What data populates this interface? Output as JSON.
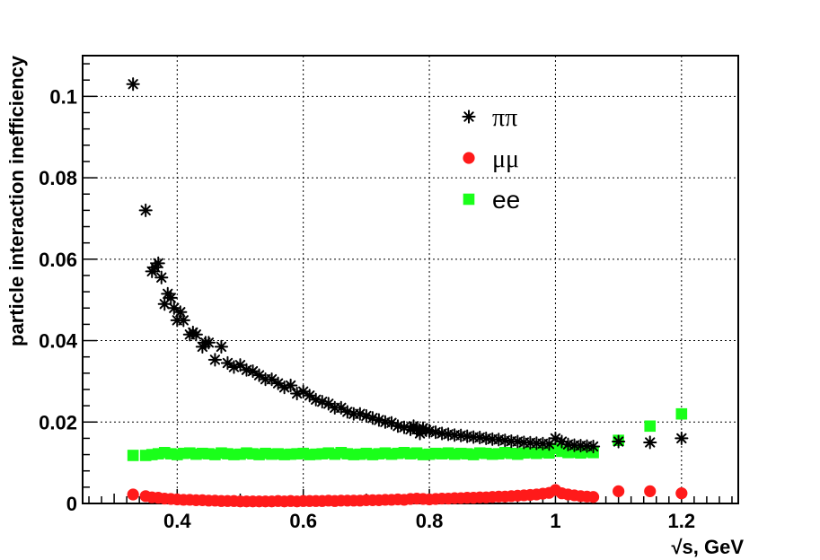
{
  "chart_data": {
    "type": "scatter",
    "title": "",
    "xlabel": "√s, GeV",
    "ylabel": "particle interaction inefficiency",
    "xlim": [
      0.25,
      1.29
    ],
    "ylim": [
      0,
      0.11
    ],
    "x_ticks": [
      0.4,
      0.6,
      0.8,
      1.0,
      1.2
    ],
    "x_tick_labels": [
      "0.4",
      "0.6",
      "0.8",
      "1",
      "1.2"
    ],
    "y_ticks": [
      0,
      0.02,
      0.04,
      0.06,
      0.08,
      0.1
    ],
    "y_tick_labels": [
      "0",
      "0.02",
      "0.04",
      "0.06",
      "0.08",
      "0.1"
    ],
    "grid": true,
    "legend_position": "top-center",
    "series": [
      {
        "name": "ππ",
        "marker": "star",
        "color": "#000000",
        "x": [
          0.33,
          0.35,
          0.36,
          0.365,
          0.37,
          0.375,
          0.38,
          0.385,
          0.39,
          0.395,
          0.4,
          0.405,
          0.41,
          0.42,
          0.425,
          0.43,
          0.44,
          0.445,
          0.45,
          0.46,
          0.47,
          0.48,
          0.49,
          0.5,
          0.51,
          0.52,
          0.53,
          0.54,
          0.55,
          0.56,
          0.57,
          0.58,
          0.59,
          0.6,
          0.61,
          0.62,
          0.63,
          0.64,
          0.65,
          0.66,
          0.67,
          0.68,
          0.69,
          0.7,
          0.71,
          0.72,
          0.73,
          0.74,
          0.75,
          0.76,
          0.77,
          0.775,
          0.78,
          0.785,
          0.79,
          0.795,
          0.8,
          0.81,
          0.82,
          0.83,
          0.84,
          0.85,
          0.86,
          0.87,
          0.88,
          0.89,
          0.9,
          0.91,
          0.92,
          0.93,
          0.94,
          0.95,
          0.96,
          0.97,
          0.98,
          0.99,
          1.0,
          1.01,
          1.02,
          1.03,
          1.04,
          1.05,
          1.06,
          1.1,
          1.15,
          1.2
        ],
        "y": [
          0.103,
          0.072,
          0.057,
          0.058,
          0.059,
          0.0555,
          0.049,
          0.0515,
          0.0505,
          0.048,
          0.045,
          0.047,
          0.045,
          0.0415,
          0.042,
          0.0415,
          0.0385,
          0.0395,
          0.0395,
          0.0353,
          0.0385,
          0.0345,
          0.0335,
          0.034,
          0.0328,
          0.0325,
          0.0315,
          0.0305,
          0.0305,
          0.0295,
          0.0285,
          0.029,
          0.027,
          0.0275,
          0.0265,
          0.0255,
          0.025,
          0.0245,
          0.0235,
          0.0235,
          0.0225,
          0.022,
          0.022,
          0.0215,
          0.021,
          0.0205,
          0.02,
          0.0198,
          0.019,
          0.0187,
          0.0182,
          0.019,
          0.0182,
          0.0172,
          0.0185,
          0.018,
          0.0178,
          0.0175,
          0.0172,
          0.017,
          0.0168,
          0.0167,
          0.0165,
          0.0163,
          0.0162,
          0.016,
          0.0158,
          0.0157,
          0.0155,
          0.0153,
          0.0152,
          0.015,
          0.0149,
          0.0148,
          0.0147,
          0.0146,
          0.016,
          0.0152,
          0.0145,
          0.0143,
          0.0142,
          0.0141,
          0.014,
          0.0152,
          0.015,
          0.016
        ]
      },
      {
        "name": "μμ",
        "marker": "circle",
        "color": "#ff1a1a",
        "x": [
          0.33,
          0.35,
          0.36,
          0.37,
          0.38,
          0.39,
          0.4,
          0.41,
          0.42,
          0.43,
          0.44,
          0.45,
          0.46,
          0.47,
          0.48,
          0.49,
          0.5,
          0.51,
          0.52,
          0.53,
          0.54,
          0.55,
          0.56,
          0.57,
          0.58,
          0.59,
          0.6,
          0.61,
          0.62,
          0.63,
          0.64,
          0.65,
          0.66,
          0.67,
          0.68,
          0.69,
          0.7,
          0.71,
          0.72,
          0.73,
          0.74,
          0.75,
          0.76,
          0.77,
          0.78,
          0.79,
          0.8,
          0.81,
          0.82,
          0.83,
          0.84,
          0.85,
          0.86,
          0.87,
          0.88,
          0.89,
          0.9,
          0.91,
          0.92,
          0.93,
          0.94,
          0.95,
          0.96,
          0.97,
          0.98,
          0.99,
          1.0,
          1.01,
          1.02,
          1.03,
          1.04,
          1.05,
          1.06,
          1.1,
          1.15,
          1.2
        ],
        "y": [
          0.0022,
          0.0018,
          0.0015,
          0.0014,
          0.0012,
          0.0011,
          0.001,
          0.0009,
          0.0009,
          0.0008,
          0.0008,
          0.0007,
          0.0007,
          0.0006,
          0.0006,
          0.0006,
          0.0005,
          0.0005,
          0.0005,
          0.0005,
          0.0005,
          0.0005,
          0.0006,
          0.0005,
          0.0006,
          0.0005,
          0.0006,
          0.0006,
          0.0006,
          0.0006,
          0.0007,
          0.0006,
          0.0007,
          0.0007,
          0.0007,
          0.0007,
          0.0008,
          0.0008,
          0.0008,
          0.0009,
          0.0009,
          0.001,
          0.0009,
          0.0011,
          0.0012,
          0.0011,
          0.001,
          0.0011,
          0.0012,
          0.0012,
          0.0013,
          0.0013,
          0.0014,
          0.0014,
          0.0015,
          0.0015,
          0.0016,
          0.0017,
          0.0017,
          0.0018,
          0.0019,
          0.002,
          0.0021,
          0.0022,
          0.0024,
          0.0026,
          0.0033,
          0.0025,
          0.0022,
          0.002,
          0.0018,
          0.0017,
          0.0016,
          0.003,
          0.003,
          0.0025
        ]
      },
      {
        "name": "ee",
        "marker": "square",
        "color": "#1aff1a",
        "x": [
          0.33,
          0.35,
          0.36,
          0.37,
          0.38,
          0.39,
          0.4,
          0.41,
          0.42,
          0.43,
          0.44,
          0.45,
          0.46,
          0.47,
          0.48,
          0.49,
          0.5,
          0.51,
          0.52,
          0.53,
          0.54,
          0.55,
          0.56,
          0.57,
          0.58,
          0.59,
          0.6,
          0.61,
          0.62,
          0.63,
          0.64,
          0.65,
          0.66,
          0.67,
          0.68,
          0.69,
          0.7,
          0.71,
          0.72,
          0.73,
          0.74,
          0.75,
          0.76,
          0.77,
          0.78,
          0.79,
          0.8,
          0.81,
          0.82,
          0.83,
          0.84,
          0.85,
          0.86,
          0.87,
          0.88,
          0.89,
          0.9,
          0.91,
          0.92,
          0.93,
          0.94,
          0.95,
          0.96,
          0.97,
          0.98,
          0.99,
          1.0,
          1.01,
          1.02,
          1.03,
          1.04,
          1.05,
          1.06,
          1.1,
          1.15,
          1.2
        ],
        "y": [
          0.0118,
          0.0118,
          0.012,
          0.0122,
          0.0125,
          0.0122,
          0.012,
          0.0123,
          0.0124,
          0.0121,
          0.0123,
          0.0122,
          0.012,
          0.0124,
          0.0122,
          0.012,
          0.0121,
          0.0124,
          0.0122,
          0.012,
          0.0123,
          0.0121,
          0.0122,
          0.012,
          0.0121,
          0.0122,
          0.0123,
          0.012,
          0.0121,
          0.0122,
          0.0124,
          0.0121,
          0.0125,
          0.0122,
          0.012,
          0.0121,
          0.0123,
          0.012,
          0.0122,
          0.0124,
          0.0121,
          0.0123,
          0.0125,
          0.0122,
          0.0124,
          0.012,
          0.0121,
          0.0123,
          0.0122,
          0.0124,
          0.0121,
          0.0123,
          0.0122,
          0.012,
          0.0124,
          0.0123,
          0.0121,
          0.0122,
          0.0125,
          0.0123,
          0.0121,
          0.0124,
          0.0125,
          0.0123,
          0.0126,
          0.0124,
          0.0135,
          0.0128,
          0.0125,
          0.0126,
          0.0124,
          0.0127,
          0.0125,
          0.0155,
          0.019,
          0.022
        ]
      }
    ]
  }
}
